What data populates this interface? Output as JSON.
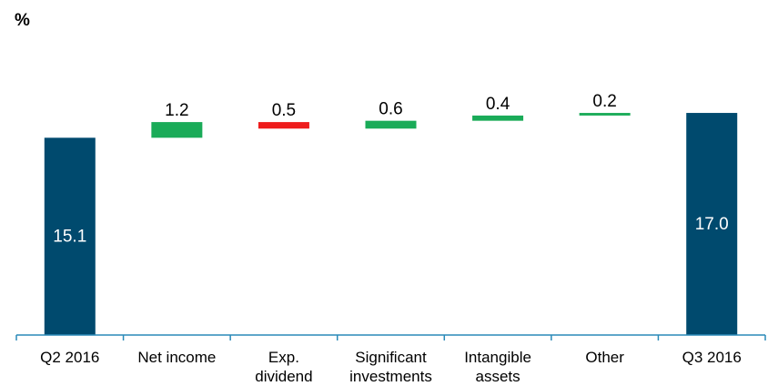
{
  "chart_data": {
    "type": "waterfall",
    "unit_label": "%",
    "categories": [
      {
        "label_lines": [
          "Q2 2016"
        ]
      },
      {
        "label_lines": [
          "Net income"
        ]
      },
      {
        "label_lines": [
          "Exp.",
          "dividend"
        ]
      },
      {
        "label_lines": [
          "Significant",
          "investments"
        ]
      },
      {
        "label_lines": [
          "Intangible",
          "assets"
        ]
      },
      {
        "label_lines": [
          "Other"
        ]
      },
      {
        "label_lines": [
          "Q3 2016"
        ]
      }
    ],
    "bars": [
      {
        "kind": "total",
        "value": 15.1,
        "label": "15.1"
      },
      {
        "kind": "increase",
        "value": 1.2,
        "label": "1.2"
      },
      {
        "kind": "decrease",
        "value": -0.5,
        "label": "0.5"
      },
      {
        "kind": "increase",
        "value": 0.6,
        "label": "0.6"
      },
      {
        "kind": "increase",
        "value": 0.4,
        "label": "0.4"
      },
      {
        "kind": "increase",
        "value": 0.2,
        "label": "0.2"
      },
      {
        "kind": "total",
        "value": 17.0,
        "label": "17.0"
      }
    ],
    "colors": {
      "total": "#004a6e",
      "increase": "#1aab58",
      "decrease": "#ee1c1c",
      "axis": "#2a8ab8"
    }
  }
}
